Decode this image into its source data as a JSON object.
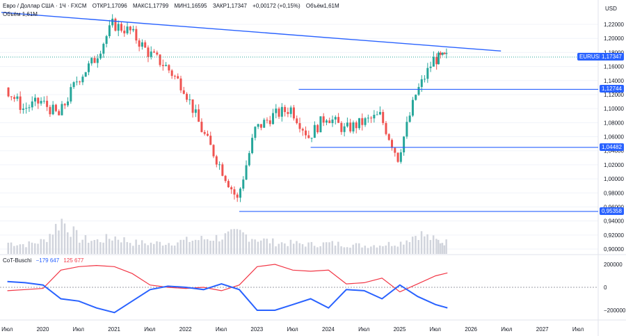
{
  "header": {
    "symbol": "Евро / Доллар США · 1Ч · FXCM",
    "open": "ОТКР1,17096",
    "high": "МАКС1,17799",
    "low": "МИН1,16595",
    "close": "ЗАКР1,17347",
    "change": "+0,00172 (+0,15%)",
    "volume": "Объём1,61M",
    "volume_row": "Объём  1,61M"
  },
  "currency": "USD",
  "ticker": "EURUSD",
  "last_price": "1,17347",
  "price_axis": [
    "1,22000",
    "1,20000",
    "1,18000",
    "1,16000",
    "1,14000",
    "1,12000",
    "1,10000",
    "1,08000",
    "1,06000",
    "1,04000",
    "1,02000",
    "1,00000",
    "0,98000",
    "0,96000",
    "0,94000",
    "0,92000",
    "0,90000"
  ],
  "levels": [
    {
      "label": "1,12744",
      "value": 1.12744
    },
    {
      "label": "1,04482",
      "value": 1.04482
    },
    {
      "label": "0,95358",
      "value": 0.95358
    }
  ],
  "time_axis": [
    "Июл",
    "2020",
    "Июл",
    "2021",
    "Июл",
    "2022",
    "Июл",
    "2023",
    "Июл",
    "2024",
    "Июл",
    "2025",
    "Июл",
    "2026",
    "Июл",
    "2027",
    "Июл"
  ],
  "cot": {
    "title": "CoT-Buschi",
    "value_blue": "−179 647",
    "value_red": "125 677",
    "axis": [
      "200000",
      "0",
      "−200000"
    ]
  },
  "colors": {
    "up": "#26a69a",
    "down": "#ef5350",
    "trend": "#2962ff",
    "cot_blue": "#2962ff",
    "cot_red": "#f23645",
    "volume": "#d1d4dc"
  },
  "chart_data": {
    "type": "candlestick",
    "title": "Евро / Доллар США · 1Ч · FXCM",
    "ylabel": "USD",
    "ylim": [
      0.89,
      1.24
    ],
    "x": [
      "2019-07",
      "2019-10",
      "2020-01",
      "2020-04",
      "2020-07",
      "2020-10",
      "2021-01",
      "2021-04",
      "2021-07",
      "2021-10",
      "2022-01",
      "2022-04",
      "2022-07",
      "2022-10",
      "2023-01",
      "2023-04",
      "2023-07",
      "2023-10",
      "2024-01",
      "2024-04",
      "2024-07",
      "2024-10",
      "2025-01",
      "2025-04",
      "2025-07",
      "2025-09"
    ],
    "price": [
      1.13,
      1.1,
      1.11,
      1.09,
      1.14,
      1.17,
      1.22,
      1.21,
      1.18,
      1.16,
      1.13,
      1.07,
      1.02,
      0.97,
      1.07,
      1.09,
      1.1,
      1.06,
      1.09,
      1.07,
      1.08,
      1.09,
      1.03,
      1.12,
      1.17,
      1.173
    ],
    "trendline": {
      "from": [
        "2019-06",
        1.237
      ],
      "to": [
        "2026-06",
        1.182
      ]
    },
    "levels": [
      1.12744,
      1.04482,
      0.95358
    ],
    "last": 1.17347,
    "volume": [
      0.3,
      0.25,
      0.35,
      0.9,
      0.4,
      0.35,
      0.45,
      0.3,
      0.28,
      0.3,
      0.35,
      0.4,
      0.45,
      0.55,
      0.4,
      0.3,
      0.28,
      0.25,
      0.28,
      0.25,
      0.22,
      0.25,
      0.3,
      0.55,
      0.35,
      0.3
    ],
    "cot_blue": [
      50000,
      40000,
      20000,
      -100000,
      -120000,
      -180000,
      -220000,
      -120000,
      -20000,
      10000,
      0,
      -20000,
      30000,
      -20000,
      -200000,
      -200000,
      -150000,
      -100000,
      -180000,
      -20000,
      -30000,
      -100000,
      20000,
      -80000,
      -150000,
      -179647
    ],
    "cot_red": [
      -30000,
      -20000,
      -10000,
      150000,
      180000,
      190000,
      180000,
      120000,
      20000,
      0,
      -10000,
      0,
      -30000,
      20000,
      180000,
      200000,
      150000,
      140000,
      150000,
      30000,
      40000,
      80000,
      -40000,
      30000,
      100000,
      125677
    ]
  }
}
